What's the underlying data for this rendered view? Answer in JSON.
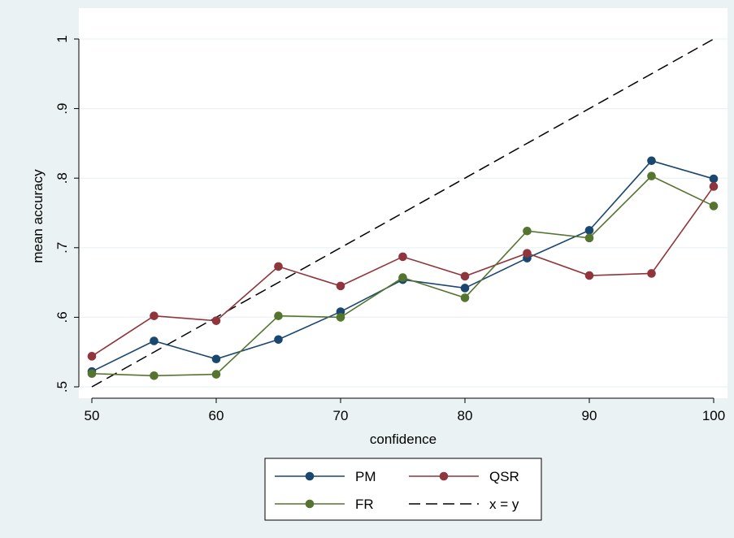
{
  "chart_data": {
    "type": "line",
    "xlabel": "confidence",
    "ylabel": "mean accuracy",
    "xlim": [
      50,
      100
    ],
    "ylim": [
      0.5,
      1.0
    ],
    "x_ticks": [
      50,
      60,
      70,
      80,
      90,
      100
    ],
    "x_tick_labels": [
      "50",
      "60",
      "70",
      "80",
      "90",
      "100"
    ],
    "y_ticks": [
      0.5,
      0.6,
      0.7,
      0.8,
      0.9,
      1.0
    ],
    "y_tick_labels": [
      ".5",
      ".6",
      ".7",
      ".8",
      ".9",
      "1"
    ],
    "grid": true,
    "legend_position": "bottom",
    "x": [
      50,
      55,
      60,
      65,
      70,
      75,
      80,
      85,
      90,
      95,
      100
    ],
    "series": [
      {
        "name": "PM",
        "color": "#1a476f",
        "values": [
          0.522,
          0.566,
          0.54,
          0.568,
          0.608,
          0.654,
          0.642,
          0.685,
          0.725,
          0.825,
          0.799
        ]
      },
      {
        "name": "QSR",
        "color": "#90353b",
        "values": [
          0.544,
          0.602,
          0.595,
          0.673,
          0.645,
          0.687,
          0.659,
          0.692,
          0.66,
          0.663,
          0.788
        ]
      },
      {
        "name": "FR",
        "color": "#55752f",
        "values": [
          0.519,
          0.516,
          0.518,
          0.602,
          0.6,
          0.657,
          0.628,
          0.724,
          0.714,
          0.803,
          0.76
        ]
      }
    ],
    "reference_line": {
      "name": "x = y",
      "color": "#000000",
      "style": "dashed",
      "from": [
        50,
        0.5
      ],
      "to": [
        100,
        1.0
      ]
    }
  }
}
